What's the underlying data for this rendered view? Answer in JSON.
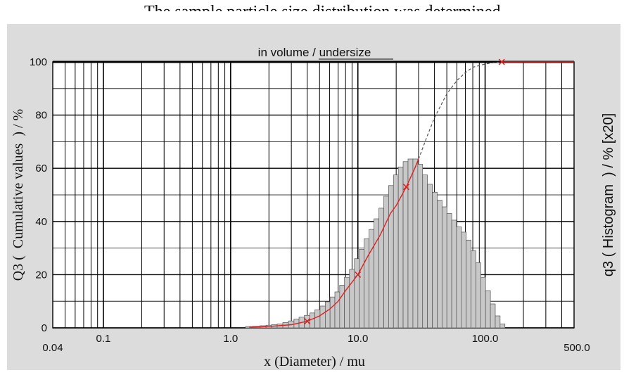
{
  "header_fragment": "The sample particle size distribution was determined",
  "chart_data": {
    "type": "bar",
    "title": "in volume / undersize",
    "xlabel": "x (Diameter) / mu",
    "ylabel_left": "Q3 (  Cumulative values  ) / %",
    "ylabel_right": "q3 ( Histogram  ) / % [x20]",
    "x_scale": "log",
    "xlim": [
      0.04,
      500
    ],
    "ylim": [
      0,
      100
    ],
    "x_ticks": [
      {
        "value": 0.04,
        "label": "0.04"
      },
      {
        "value": 0.1,
        "label": "0.1"
      },
      {
        "value": 1,
        "label": "1.0"
      },
      {
        "value": 10,
        "label": "10.0"
      },
      {
        "value": 100,
        "label": "100.0"
      },
      {
        "value": 500,
        "label": "500.0"
      }
    ],
    "y_ticks": [
      0,
      20,
      40,
      60,
      80,
      100
    ],
    "grid": true,
    "histogram": {
      "name": "q3 (Histogram) x20",
      "x": [
        1.4,
        1.6,
        1.8,
        2.0,
        2.2,
        2.45,
        2.7,
        3.0,
        3.3,
        3.6,
        4.0,
        4.4,
        4.8,
        5.3,
        5.8,
        6.3,
        6.9,
        7.5,
        8.2,
        9.0,
        9.8,
        10.7,
        11.7,
        12.8,
        14.0,
        15.3,
        16.7,
        18.2,
        19.9,
        21.7,
        23.7,
        25.9,
        28.3,
        30.9,
        33.7,
        36.8,
        40.2,
        43.9,
        47.9,
        52.3,
        57.1,
        62.3,
        68.0,
        74.2,
        81.0,
        88.4,
        96.5,
        105.3,
        115.0,
        125.5,
        137.0
      ],
      "values": [
        0.5,
        0.6,
        0.8,
        1.0,
        1.2,
        1.5,
        2.0,
        2.6,
        3.3,
        4.0,
        4.7,
        5.6,
        6.8,
        8.2,
        9.8,
        11.6,
        13.5,
        16.0,
        19.0,
        22.0,
        26.0,
        29.5,
        33.5,
        37.0,
        41.0,
        45.0,
        49.5,
        53.5,
        57.5,
        60.5,
        62.5,
        63.5,
        63.5,
        61.5,
        57.5,
        54.0,
        51.0,
        48.0,
        45.5,
        43.0,
        40.5,
        38.0,
        36.0,
        33.0,
        29.0,
        24.5,
        19.0,
        14.0,
        9.0,
        4.5,
        1.5
      ]
    },
    "cumulative": {
      "name": "Q3 (Cumulative values)",
      "x": [
        1.4,
        2.0,
        3.0,
        4.0,
        5.0,
        6.0,
        7.0,
        8.0,
        10.0,
        12.0,
        15.0,
        18.0,
        20.0,
        24.0,
        28.0,
        30.0,
        35.0,
        40.0,
        50.0,
        60.0,
        70.0,
        80.0,
        100.0,
        120.0,
        135.0,
        150.0,
        200.0,
        300.0,
        500.0
      ],
      "values": [
        0.2,
        0.5,
        1.2,
        2.5,
        4.5,
        7.0,
        10.0,
        14.0,
        20.0,
        27.0,
        35.0,
        43.0,
        46.0,
        53.0,
        60.0,
        63.5,
        72.0,
        79.0,
        88.0,
        93.0,
        96.0,
        98.0,
        99.2,
        99.8,
        100.0,
        100.0,
        100.0,
        100.0,
        100.0
      ]
    },
    "cumulative_markers": [
      4.0,
      10.0,
      24.0,
      135.0
    ],
    "colors": {
      "cumulative_line": "#dd2222",
      "dashed_line": "#555555",
      "bar_fill": "#c8c8c8",
      "bar_stroke": "#555555",
      "plot_bg": "#ffffff",
      "panel_bg": "#dcdcdc"
    }
  }
}
